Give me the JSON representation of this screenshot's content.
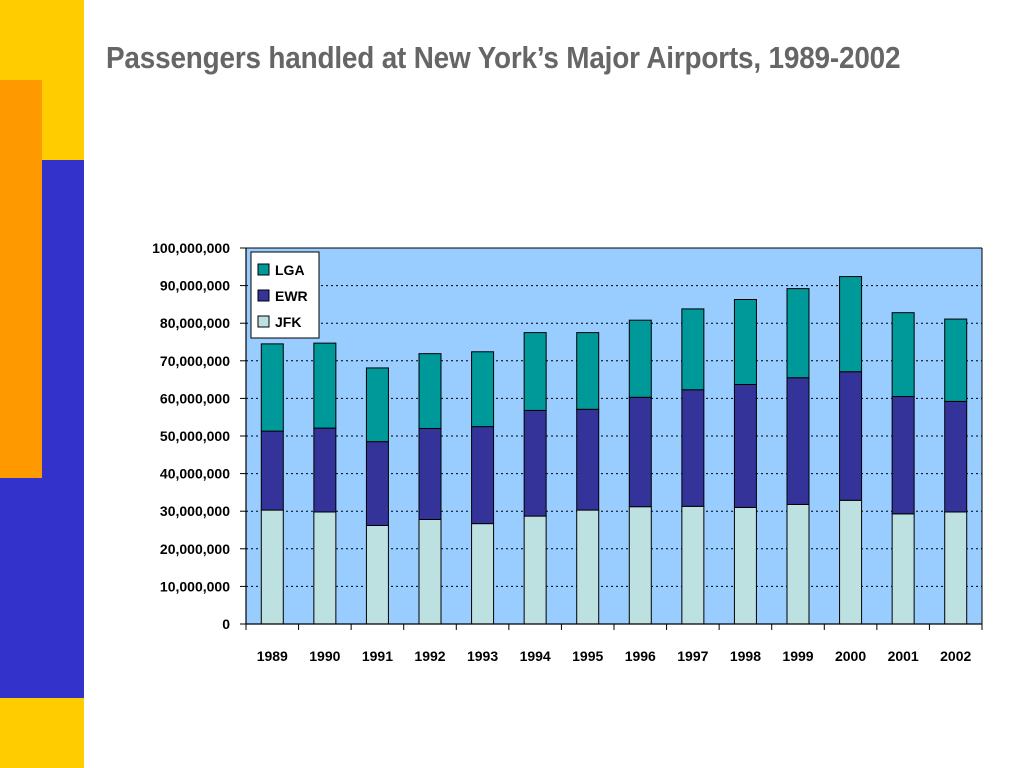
{
  "slide": {
    "title": "Passengers handled at New York’s Major Airports, 1989-2002"
  },
  "colors": {
    "deco_yellow": "#ffcc00",
    "deco_orange": "#ff9900",
    "deco_blue": "#3333cc",
    "plot_background": "#99ccff",
    "JFK": "#bde0e0",
    "EWR": "#333399",
    "LGA": "#009999"
  },
  "chart_data": {
    "type": "bar",
    "stacked": true,
    "categories": [
      "1989",
      "1990",
      "1991",
      "1992",
      "1993",
      "1994",
      "1995",
      "1996",
      "1997",
      "1998",
      "1999",
      "2000",
      "2001",
      "2002"
    ],
    "series": [
      {
        "name": "JFK",
        "values": [
          30300000,
          29800000,
          26200000,
          27800000,
          26700000,
          28700000,
          30300000,
          31200000,
          31300000,
          31000000,
          31800000,
          32900000,
          29300000,
          29800000
        ]
      },
      {
        "name": "EWR",
        "values": [
          21000000,
          22300000,
          22300000,
          24200000,
          25800000,
          28100000,
          26800000,
          29100000,
          31000000,
          32700000,
          33700000,
          34200000,
          31200000,
          29400000
        ]
      },
      {
        "name": "LGA",
        "values": [
          23200000,
          22600000,
          19600000,
          19900000,
          19900000,
          20700000,
          20400000,
          20500000,
          21500000,
          22600000,
          23700000,
          25300000,
          22300000,
          21900000
        ]
      }
    ],
    "yticks": [
      "0",
      "10,000,000",
      "20,000,000",
      "30,000,000",
      "40,000,000",
      "50,000,000",
      "60,000,000",
      "70,000,000",
      "80,000,000",
      "90,000,000",
      "100,000,000"
    ],
    "ylim": [
      0,
      100000000
    ],
    "grid": true,
    "legend_order": [
      "LGA",
      "EWR",
      "JFK"
    ],
    "legend_position": "top-left"
  }
}
